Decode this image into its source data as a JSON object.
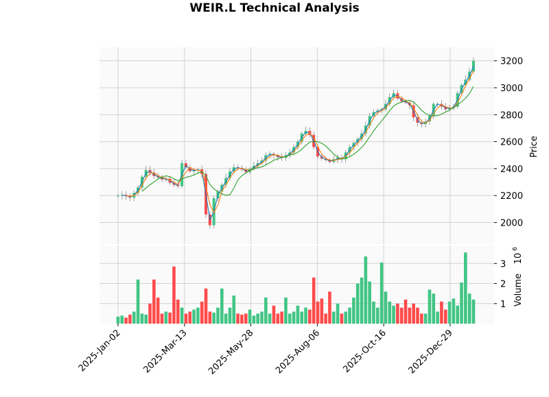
{
  "chart_data": {
    "type": "candlestick",
    "title": "WEIR.L Technical Analysis",
    "sample_step_days": 3,
    "price_panel": {
      "ylabel": "Price",
      "ylim": [
        1840,
        3300
      ],
      "yticks": [
        2000,
        2200,
        2400,
        2600,
        2800,
        3000,
        3200
      ],
      "grid": true,
      "moving_averages_days": [
        5,
        10,
        20
      ],
      "ma_colors": [
        "#1f77b4",
        "#ff7f0e",
        "#2ca02c"
      ]
    },
    "volume_panel": {
      "ylabel": "Volume",
      "scale_label": "10",
      "scale_exponent": "6",
      "ylim": [
        0,
        3.9
      ],
      "yticks": [
        1,
        2,
        3
      ],
      "grid": true
    },
    "colors": {
      "up": "#41c584",
      "down": "#fe4b4b",
      "wick": "#888888",
      "panel_bg": "#fafafa",
      "grid": "#d2d2d2"
    },
    "xticks": [
      {
        "label": "2025-Jan-02",
        "index": 0
      },
      {
        "label": "2025-Mar-13",
        "index": 16.63
      },
      {
        "label": "2025-May-28",
        "index": 33.26
      },
      {
        "label": "2025-Aug-06",
        "index": 49.89
      },
      {
        "label": "2025-Oct-16",
        "index": 66.52
      },
      {
        "label": "2025-Dec-29",
        "index": 83.15
      }
    ],
    "close": [
      2200,
      2205,
      2195,
      2185,
      2220,
      2260,
      2340,
      2390,
      2370,
      2345,
      2335,
      2320,
      2325,
      2295,
      2280,
      2270,
      2440,
      2410,
      2380,
      2390,
      2395,
      2360,
      2060,
      1980,
      2180,
      2230,
      2280,
      2330,
      2380,
      2410,
      2405,
      2395,
      2375,
      2400,
      2420,
      2440,
      2460,
      2500,
      2510,
      2500,
      2485,
      2480,
      2500,
      2520,
      2560,
      2600,
      2660,
      2680,
      2650,
      2560,
      2490,
      2475,
      2465,
      2450,
      2470,
      2480,
      2470,
      2520,
      2560,
      2590,
      2620,
      2660,
      2720,
      2790,
      2820,
      2830,
      2840,
      2880,
      2930,
      2960,
      2920,
      2900,
      2890,
      2870,
      2780,
      2740,
      2730,
      2750,
      2790,
      2880,
      2880,
      2860,
      2840,
      2850,
      2860,
      2960,
      3020,
      3060,
      3120,
      3200
    ],
    "volume_millions": [
      0.35,
      0.4,
      0.3,
      0.45,
      0.6,
      2.2,
      0.5,
      0.45,
      1.0,
      2.2,
      1.3,
      0.5,
      0.6,
      0.55,
      2.85,
      1.2,
      0.8,
      0.5,
      0.6,
      0.7,
      0.8,
      1.1,
      1.75,
      0.6,
      0.55,
      0.8,
      1.75,
      0.5,
      0.8,
      1.4,
      0.5,
      0.45,
      0.5,
      0.7,
      0.4,
      0.5,
      0.6,
      1.3,
      0.5,
      0.9,
      0.5,
      0.6,
      1.3,
      0.5,
      0.6,
      0.9,
      0.6,
      0.8,
      0.7,
      2.3,
      1.1,
      1.25,
      0.5,
      1.6,
      0.6,
      1.0,
      0.5,
      0.6,
      0.8,
      1.3,
      2.0,
      2.3,
      3.35,
      2.1,
      1.1,
      0.8,
      3.05,
      1.6,
      1.1,
      0.9,
      1.0,
      0.8,
      1.2,
      0.8,
      1.0,
      0.8,
      0.5,
      0.5,
      1.7,
      1.5,
      0.6,
      1.1,
      0.7,
      1.1,
      1.25,
      0.9,
      2.05,
      3.55,
      1.5,
      1.2
    ]
  }
}
